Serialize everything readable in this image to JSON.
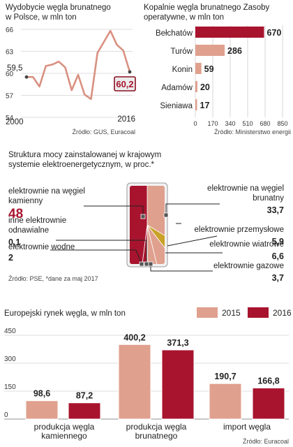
{
  "colors": {
    "dark_red": "#a8142e",
    "light_red": "#e0a08e",
    "gold": "#c9a227",
    "highlight_bg": "#ececec",
    "line": "#d99080",
    "grid": "#bcbcbc",
    "box_bg": "#f2f2f2"
  },
  "chart_data": [
    {
      "type": "line",
      "title": "Wydobycie węgla brunatnego w Polsce, w mln ton",
      "x_start_label": "2000",
      "x_end_label": "2016",
      "y_ticks": [
        "66",
        "63",
        "60",
        "57",
        "54"
      ],
      "ylim": [
        54,
        66
      ],
      "start_label": "59,5",
      "end_label": "60,2",
      "x": [
        2000,
        2001,
        2002,
        2003,
        2004,
        2005,
        2006,
        2007,
        2008,
        2009,
        2010,
        2011,
        2012,
        2013,
        2014,
        2015,
        2016
      ],
      "values": [
        59.5,
        59.5,
        58.2,
        61.0,
        61.2,
        61.6,
        60.8,
        57.7,
        59.8,
        57.1,
        56.5,
        62.8,
        64.3,
        65.8,
        63.9,
        63.1,
        60.2
      ],
      "source": "Źródło: GUS, Euracoal"
    },
    {
      "type": "bar",
      "orientation": "horizontal",
      "title": "Kopalnie węgla brunatnego Zasoby operatywne, w mln ton",
      "categories": [
        "Bełchatów",
        "Turów",
        "Konin",
        "Adamów",
        "Sieniawa"
      ],
      "values": [
        670,
        286,
        59,
        20,
        17
      ],
      "value_labels": [
        "670",
        "286",
        "59",
        "20",
        "17"
      ],
      "x_ticks": [
        "0",
        "170",
        "340",
        "510",
        "680",
        "850"
      ],
      "xlim": [
        0,
        850
      ],
      "source": "Źródło: Ministerstwo energii"
    },
    {
      "type": "pie",
      "title": "Struktura mocy zainstalowanej w krajowym systemie elektroenergetycznym, w proc.*",
      "slices": [
        {
          "label": "elektrownie na węgiel kamienny",
          "value": 48,
          "value_label": "48"
        },
        {
          "label": "elektrownie na węgiel brunatny",
          "value": 33.7,
          "value_label": "33,7"
        },
        {
          "label": "elektrownie przemysłowe",
          "value": 5.9,
          "value_label": "5,9"
        },
        {
          "label": "elektrownie wiatrowe",
          "value": 6.6,
          "value_label": "6,6"
        },
        {
          "label": "elektrownie gazowe",
          "value": 3.7,
          "value_label": "3,7"
        },
        {
          "label": "elektrownie wodne",
          "value": 2,
          "value_label": "2"
        },
        {
          "label": "inne elektrownie odnawialne",
          "value": 0.1,
          "value_label": "0,1"
        }
      ],
      "source": "Źródło: PSE, *dane za maj 2017"
    },
    {
      "type": "bar",
      "title": "Europejski rynek węgla, w mln ton",
      "categories": [
        "produkcja węgla kamiennego",
        "produkcja węgla brunatnego",
        "import węgla"
      ],
      "series": [
        {
          "name": "2015",
          "values": [
            98.6,
            400.2,
            190.7
          ],
          "value_labels": [
            "98,6",
            "400,2",
            "190,7"
          ]
        },
        {
          "name": "2016",
          "values": [
            87.2,
            371.3,
            166.8
          ],
          "value_labels": [
            "87,2",
            "371,3",
            "166,8"
          ]
        }
      ],
      "y_ticks": [
        "450",
        "300",
        "150",
        "0"
      ],
      "ylim": [
        0,
        450
      ],
      "source": "Źródło: Euracoal"
    }
  ]
}
